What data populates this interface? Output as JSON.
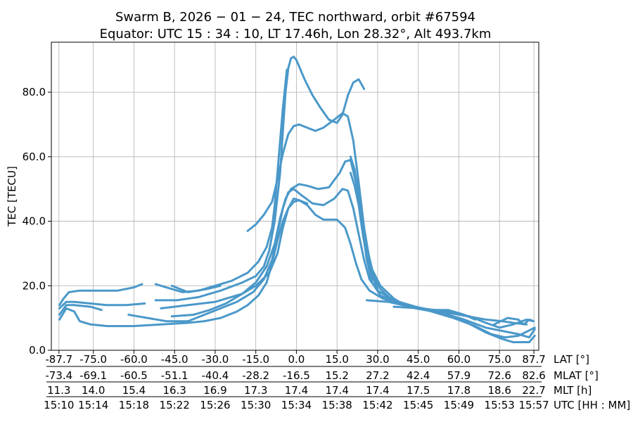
{
  "chart_data": {
    "type": "scatter",
    "title_lines": [
      "Swarm B,  2026 − 01 − 24,  TEC northward,  orbit #67594",
      "Equator:  UTC 15 : 34 : 10,  LT 17.46h,  Lon 28.32°,  Alt 493.7km"
    ],
    "ylabel": "TEC [TECU]",
    "ylim": [
      0,
      95.5
    ],
    "xlim": [
      -90.5,
      89.5
    ],
    "y_ticks": [
      0,
      20,
      40,
      60,
      80
    ],
    "y_tick_labels": [
      "0.0",
      "20.0",
      "40.0",
      "60.0",
      "80.0"
    ],
    "x_ticks": [
      -87.7,
      -75,
      -60,
      -45,
      -30,
      -15,
      0,
      15,
      30,
      45,
      60,
      75,
      87.7
    ],
    "x_axes": [
      {
        "label": "LAT [°]",
        "ticks": [
          "-87.7",
          "-75.0",
          "-60.0",
          "-45.0",
          "-30.0",
          "-15.0",
          "0.0",
          "15.0",
          "30.0",
          "45.0",
          "60.0",
          "75.0",
          "87.7"
        ]
      },
      {
        "label": "MLAT [°]",
        "ticks": [
          "-73.4",
          "-69.1",
          "-60.5",
          "-51.1",
          "-40.4",
          "-28.2",
          "-16.5",
          "15.2",
          "27.2",
          "42.4",
          "57.9",
          "72.6",
          "82.6"
        ]
      },
      {
        "label": "MLT [h]",
        "ticks": [
          "11.3",
          "14.0",
          "15.4",
          "16.3",
          "16.9",
          "17.3",
          "17.4",
          "17.4",
          "17.4",
          "17.5",
          "17.8",
          "18.6",
          "22.7"
        ]
      },
      {
        "label": "UTC [HH : MM]",
        "ticks": [
          "15:10",
          "15:14",
          "15:18",
          "15:22",
          "15:26",
          "15:30",
          "15:34",
          "15:38",
          "15:42",
          "15:45",
          "15:49",
          "15:53",
          "15:57"
        ]
      }
    ],
    "grid": true,
    "series_color": "#4a98c9",
    "series": [
      {
        "name": "arc-1",
        "points": [
          [
            -87.5,
            14
          ],
          [
            -86,
            16
          ],
          [
            -84,
            18
          ],
          [
            -80,
            18.5
          ],
          [
            -72,
            18.5
          ],
          [
            -66,
            18.5
          ],
          [
            -60,
            19.5
          ],
          [
            -57,
            20.5
          ]
        ]
      },
      {
        "name": "arc-2",
        "points": [
          [
            -52,
            20.5
          ],
          [
            -46,
            19
          ],
          [
            -42,
            18
          ],
          [
            -36,
            18.5
          ],
          [
            -30,
            20
          ],
          [
            -24,
            21.5
          ],
          [
            -18,
            24
          ],
          [
            -14,
            27.5
          ],
          [
            -11,
            32
          ],
          [
            -9,
            38
          ],
          [
            -8,
            45
          ],
          [
            -7,
            55
          ],
          [
            -6,
            65
          ],
          [
            -5,
            75
          ],
          [
            -4,
            83
          ],
          [
            -3.5,
            87
          ]
        ]
      },
      {
        "name": "arc-3",
        "points": [
          [
            -87.5,
            13
          ],
          [
            -85,
            15
          ],
          [
            -82,
            15
          ],
          [
            -76,
            14.5
          ],
          [
            -70,
            14
          ],
          [
            -63,
            14
          ],
          [
            -56,
            14.5
          ]
        ]
      },
      {
        "name": "arc-4",
        "points": [
          [
            -87.5,
            11
          ],
          [
            -85,
            14
          ],
          [
            -82,
            14
          ],
          [
            -76,
            13.5
          ],
          [
            -72,
            12.5
          ]
        ]
      },
      {
        "name": "arc-5",
        "points": [
          [
            -87.5,
            9.5
          ],
          [
            -85,
            13
          ],
          [
            -82,
            12
          ],
          [
            -80,
            9
          ],
          [
            -76,
            8
          ],
          [
            -70,
            7.5
          ],
          [
            -60,
            7.5
          ],
          [
            -50,
            8
          ],
          [
            -40,
            8.5
          ],
          [
            -34,
            9
          ],
          [
            -28,
            10
          ],
          [
            -22,
            12
          ],
          [
            -18,
            14
          ],
          [
            -14,
            17
          ],
          [
            -11,
            21
          ],
          [
            -9,
            27
          ],
          [
            -7,
            34
          ],
          [
            -5,
            40
          ],
          [
            -3,
            44
          ],
          [
            -1,
            46
          ],
          [
            1,
            46.5
          ],
          [
            4,
            45
          ],
          [
            7,
            42
          ],
          [
            10,
            40.5
          ],
          [
            15,
            40.5
          ],
          [
            18,
            38
          ],
          [
            20,
            33
          ],
          [
            22,
            27
          ],
          [
            24,
            22
          ],
          [
            27,
            18.5
          ],
          [
            32,
            16
          ],
          [
            40,
            14
          ],
          [
            50,
            12.5
          ],
          [
            60,
            11
          ],
          [
            70,
            9.5
          ],
          [
            76,
            9
          ],
          [
            80,
            8.5
          ],
          [
            85,
            8
          ]
        ]
      },
      {
        "name": "arc-6",
        "points": [
          [
            -62,
            11
          ],
          [
            -55,
            10
          ],
          [
            -48,
            9
          ],
          [
            -40,
            9
          ],
          [
            -34,
            11
          ],
          [
            -28,
            13
          ],
          [
            -22,
            15
          ],
          [
            -16,
            18
          ],
          [
            -12,
            22
          ],
          [
            -9,
            28
          ],
          [
            -7,
            36
          ],
          [
            -5,
            44
          ],
          [
            -3,
            49
          ],
          [
            -1,
            50
          ],
          [
            2,
            48
          ],
          [
            6,
            45.5
          ],
          [
            10,
            45
          ],
          [
            14,
            47
          ],
          [
            17,
            50
          ],
          [
            19,
            49.5
          ],
          [
            21,
            44
          ],
          [
            23,
            36
          ],
          [
            25,
            28
          ],
          [
            27,
            22
          ],
          [
            30,
            18.5
          ],
          [
            36,
            15.5
          ],
          [
            44,
            13.5
          ],
          [
            52,
            12
          ],
          [
            62,
            9.5
          ],
          [
            70,
            7
          ],
          [
            76,
            6
          ],
          [
            82,
            5
          ],
          [
            86,
            4
          ],
          [
            88,
            6.5
          ]
        ]
      },
      {
        "name": "arc-7",
        "points": [
          [
            -46,
            10.5
          ],
          [
            -38,
            11
          ],
          [
            -32,
            12.5
          ],
          [
            -26,
            14.5
          ],
          [
            -20,
            17.5
          ],
          [
            -15,
            21
          ],
          [
            -11,
            26
          ],
          [
            -8,
            33
          ],
          [
            -6,
            41
          ],
          [
            -4,
            47
          ],
          [
            -2,
            50
          ],
          [
            1,
            51.5
          ],
          [
            4,
            51
          ],
          [
            8,
            50
          ],
          [
            12,
            50.5
          ],
          [
            16,
            55
          ],
          [
            18,
            58.5
          ],
          [
            20,
            59
          ],
          [
            22,
            52
          ],
          [
            24,
            40
          ],
          [
            26,
            28
          ],
          [
            28,
            21
          ],
          [
            31,
            17
          ],
          [
            38,
            14.5
          ],
          [
            48,
            12.5
          ],
          [
            58,
            10
          ],
          [
            66,
            7.5
          ],
          [
            72,
            5
          ],
          [
            77,
            4
          ],
          [
            82,
            4.5
          ],
          [
            88,
            7
          ]
        ]
      },
      {
        "name": "arc-8",
        "points": [
          [
            -18,
            37
          ],
          [
            -15,
            39
          ],
          [
            -12,
            42
          ],
          [
            -9,
            46
          ],
          [
            -7,
            53
          ],
          [
            -5,
            61
          ],
          [
            -3,
            67
          ],
          [
            -1,
            69.5
          ],
          [
            1,
            70
          ],
          [
            4,
            69
          ],
          [
            7,
            68
          ],
          [
            10,
            69
          ],
          [
            14,
            71.5
          ],
          [
            17,
            73.5
          ],
          [
            19,
            72.5
          ],
          [
            21,
            65
          ],
          [
            23,
            52
          ],
          [
            25,
            38
          ],
          [
            27,
            28
          ],
          [
            29,
            22
          ],
          [
            31,
            19
          ],
          [
            36,
            15
          ],
          [
            44,
            13
          ],
          [
            54,
            11.5
          ],
          [
            62,
            9
          ],
          [
            70,
            5.5
          ],
          [
            76,
            3.5
          ],
          [
            80,
            2.5
          ],
          [
            86,
            2.5
          ],
          [
            88,
            4.5
          ]
        ]
      },
      {
        "name": "arc-9",
        "points": [
          [
            -52,
            15.5
          ],
          [
            -44,
            15.5
          ],
          [
            -36,
            16.5
          ],
          [
            -28,
            18.5
          ],
          [
            -20,
            21
          ],
          [
            -15,
            23
          ],
          [
            -12,
            26
          ],
          [
            -10,
            31
          ],
          [
            -8,
            40
          ],
          [
            -6,
            55
          ],
          [
            -5,
            68
          ],
          [
            -4,
            80
          ],
          [
            -3,
            87.5
          ],
          [
            -2,
            90.5
          ],
          [
            -1,
            91
          ],
          [
            0,
            90
          ],
          [
            1,
            88
          ],
          [
            3,
            84
          ],
          [
            6,
            79
          ],
          [
            9,
            75
          ],
          [
            12,
            71.5
          ],
          [
            15,
            70.5
          ],
          [
            17,
            73
          ],
          [
            19,
            79
          ],
          [
            21,
            83
          ],
          [
            23,
            84
          ],
          [
            25,
            81
          ]
        ]
      },
      {
        "name": "arc-10",
        "points": [
          [
            -50,
            13
          ],
          [
            -40,
            14
          ],
          [
            -30,
            15
          ],
          [
            -20,
            17.5
          ],
          [
            -15,
            20
          ],
          [
            -10,
            24
          ],
          [
            -7,
            30
          ],
          [
            -5,
            38
          ],
          [
            -3,
            44
          ],
          [
            -1,
            47
          ],
          [
            1,
            46.5
          ],
          [
            4,
            45.5
          ]
        ]
      },
      {
        "name": "arc-11",
        "points": [
          [
            20,
            60
          ],
          [
            21.5,
            56
          ],
          [
            23,
            48
          ],
          [
            24.5,
            40
          ],
          [
            26,
            32
          ],
          [
            28,
            25
          ],
          [
            31,
            20
          ],
          [
            36,
            16
          ],
          [
            40,
            14
          ]
        ]
      },
      {
        "name": "arc-12",
        "points": [
          [
            20,
            55
          ],
          [
            21.5,
            51
          ],
          [
            23,
            45
          ],
          [
            24.5,
            36
          ],
          [
            26,
            29
          ],
          [
            28,
            23
          ],
          [
            30,
            19
          ]
        ]
      },
      {
        "name": "arc-13",
        "points": [
          [
            36,
            13.5
          ],
          [
            46,
            13
          ],
          [
            56,
            12
          ],
          [
            64,
            10.5
          ],
          [
            70,
            8.5
          ],
          [
            75,
            7
          ],
          [
            80,
            8
          ],
          [
            85,
            9.5
          ],
          [
            87.5,
            9
          ]
        ]
      },
      {
        "name": "arc-14",
        "points": [
          [
            -46,
            20
          ],
          [
            -40,
            18
          ],
          [
            -33,
            19
          ],
          [
            -28,
            20
          ]
        ]
      },
      {
        "name": "arc-15",
        "points": [
          [
            26,
            15.5
          ],
          [
            34,
            15
          ],
          [
            42,
            13.5
          ],
          [
            50,
            12.5
          ],
          [
            56,
            12.5
          ],
          [
            62,
            11
          ],
          [
            66,
            9.5
          ]
        ]
      },
      {
        "name": "arc-16",
        "points": [
          [
            73,
            8
          ],
          [
            78,
            10
          ],
          [
            82,
            9.5
          ],
          [
            84,
            8
          ],
          [
            86,
            9.5
          ],
          [
            87.7,
            9
          ]
        ]
      }
    ]
  }
}
